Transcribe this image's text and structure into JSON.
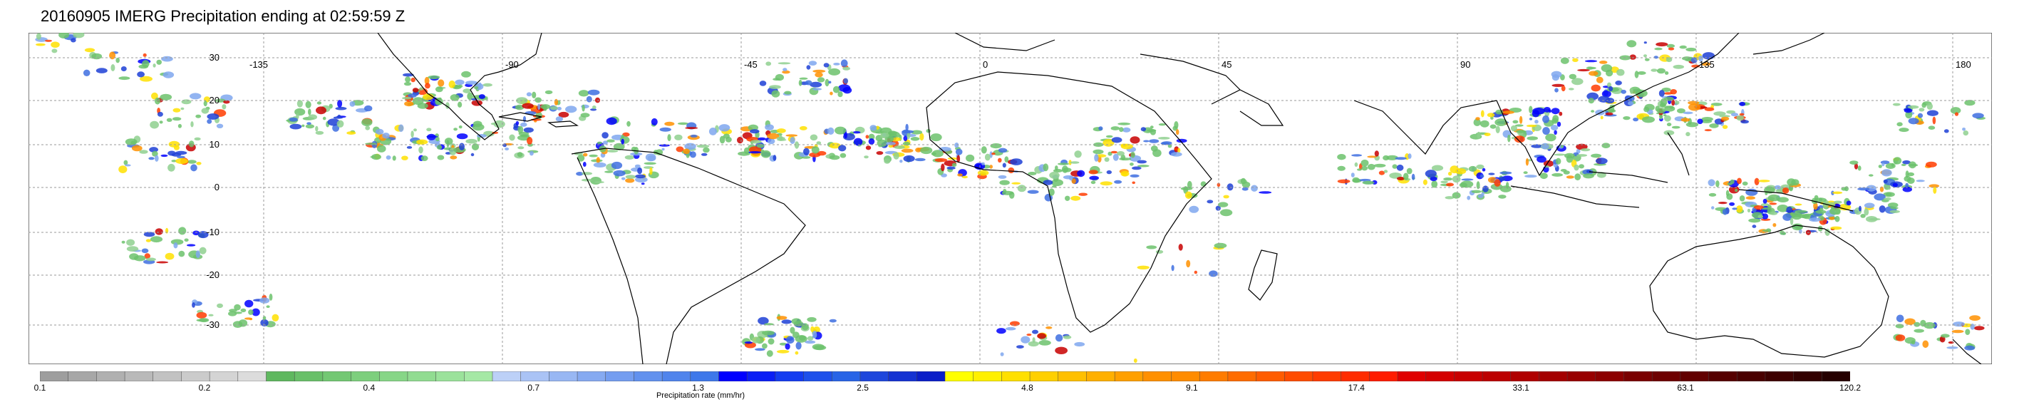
{
  "title": "20160905 IMERG Precipitation ending at 02:59:59 Z",
  "map": {
    "longitude_labels": [
      "-135",
      "-90",
      "-45",
      "0",
      "45",
      "90",
      "135",
      "180"
    ],
    "latitude_labels": [
      "30",
      "20",
      "10",
      "0",
      "-10",
      "-20",
      "-30"
    ],
    "gridlines": true
  },
  "colorbar": {
    "label": "Precipitation rate (mm/hr)",
    "tick_labels": [
      "0.1",
      "0.2",
      "0.4",
      "0.7",
      "1.3",
      "2.5",
      "4.8",
      "9.1",
      "17.4",
      "33.1",
      "63.1",
      "120.2"
    ],
    "segment_colors": [
      "#9e9e9e",
      "#a7a7a7",
      "#b0b0b0",
      "#b9b9b9",
      "#c2c2c2",
      "#cbcbcb",
      "#d4d4d4",
      "#dcdcdc",
      "#5fb85f",
      "#69c069",
      "#73c873",
      "#7dcf7d",
      "#87d687",
      "#91dc91",
      "#9be29b",
      "#a5e8a5",
      "#bcd0f7",
      "#aac3f5",
      "#98b7f3",
      "#86aaf1",
      "#749df0",
      "#6291ee",
      "#5084ec",
      "#3e78ea",
      "#0000ff",
      "#0a1ef5",
      "#143cf0",
      "#1e50eb",
      "#2864e6",
      "#1e46dc",
      "#1432d2",
      "#0a1ec8",
      "#ffff00",
      "#fff000",
      "#ffe000",
      "#ffd000",
      "#ffc000",
      "#ffb000",
      "#ffa000",
      "#ff9000",
      "#ff8c00",
      "#ff7c00",
      "#ff6c00",
      "#ff5c00",
      "#ff4c00",
      "#ff3c00",
      "#ff2c00",
      "#ff1c00",
      "#e00000",
      "#d40000",
      "#c80000",
      "#bc0000",
      "#b00000",
      "#a40000",
      "#980000",
      "#8c0000",
      "#7a0000",
      "#6e0000",
      "#620000",
      "#560000",
      "#4a0000",
      "#3e0000",
      "#320000",
      "#260000"
    ]
  }
}
